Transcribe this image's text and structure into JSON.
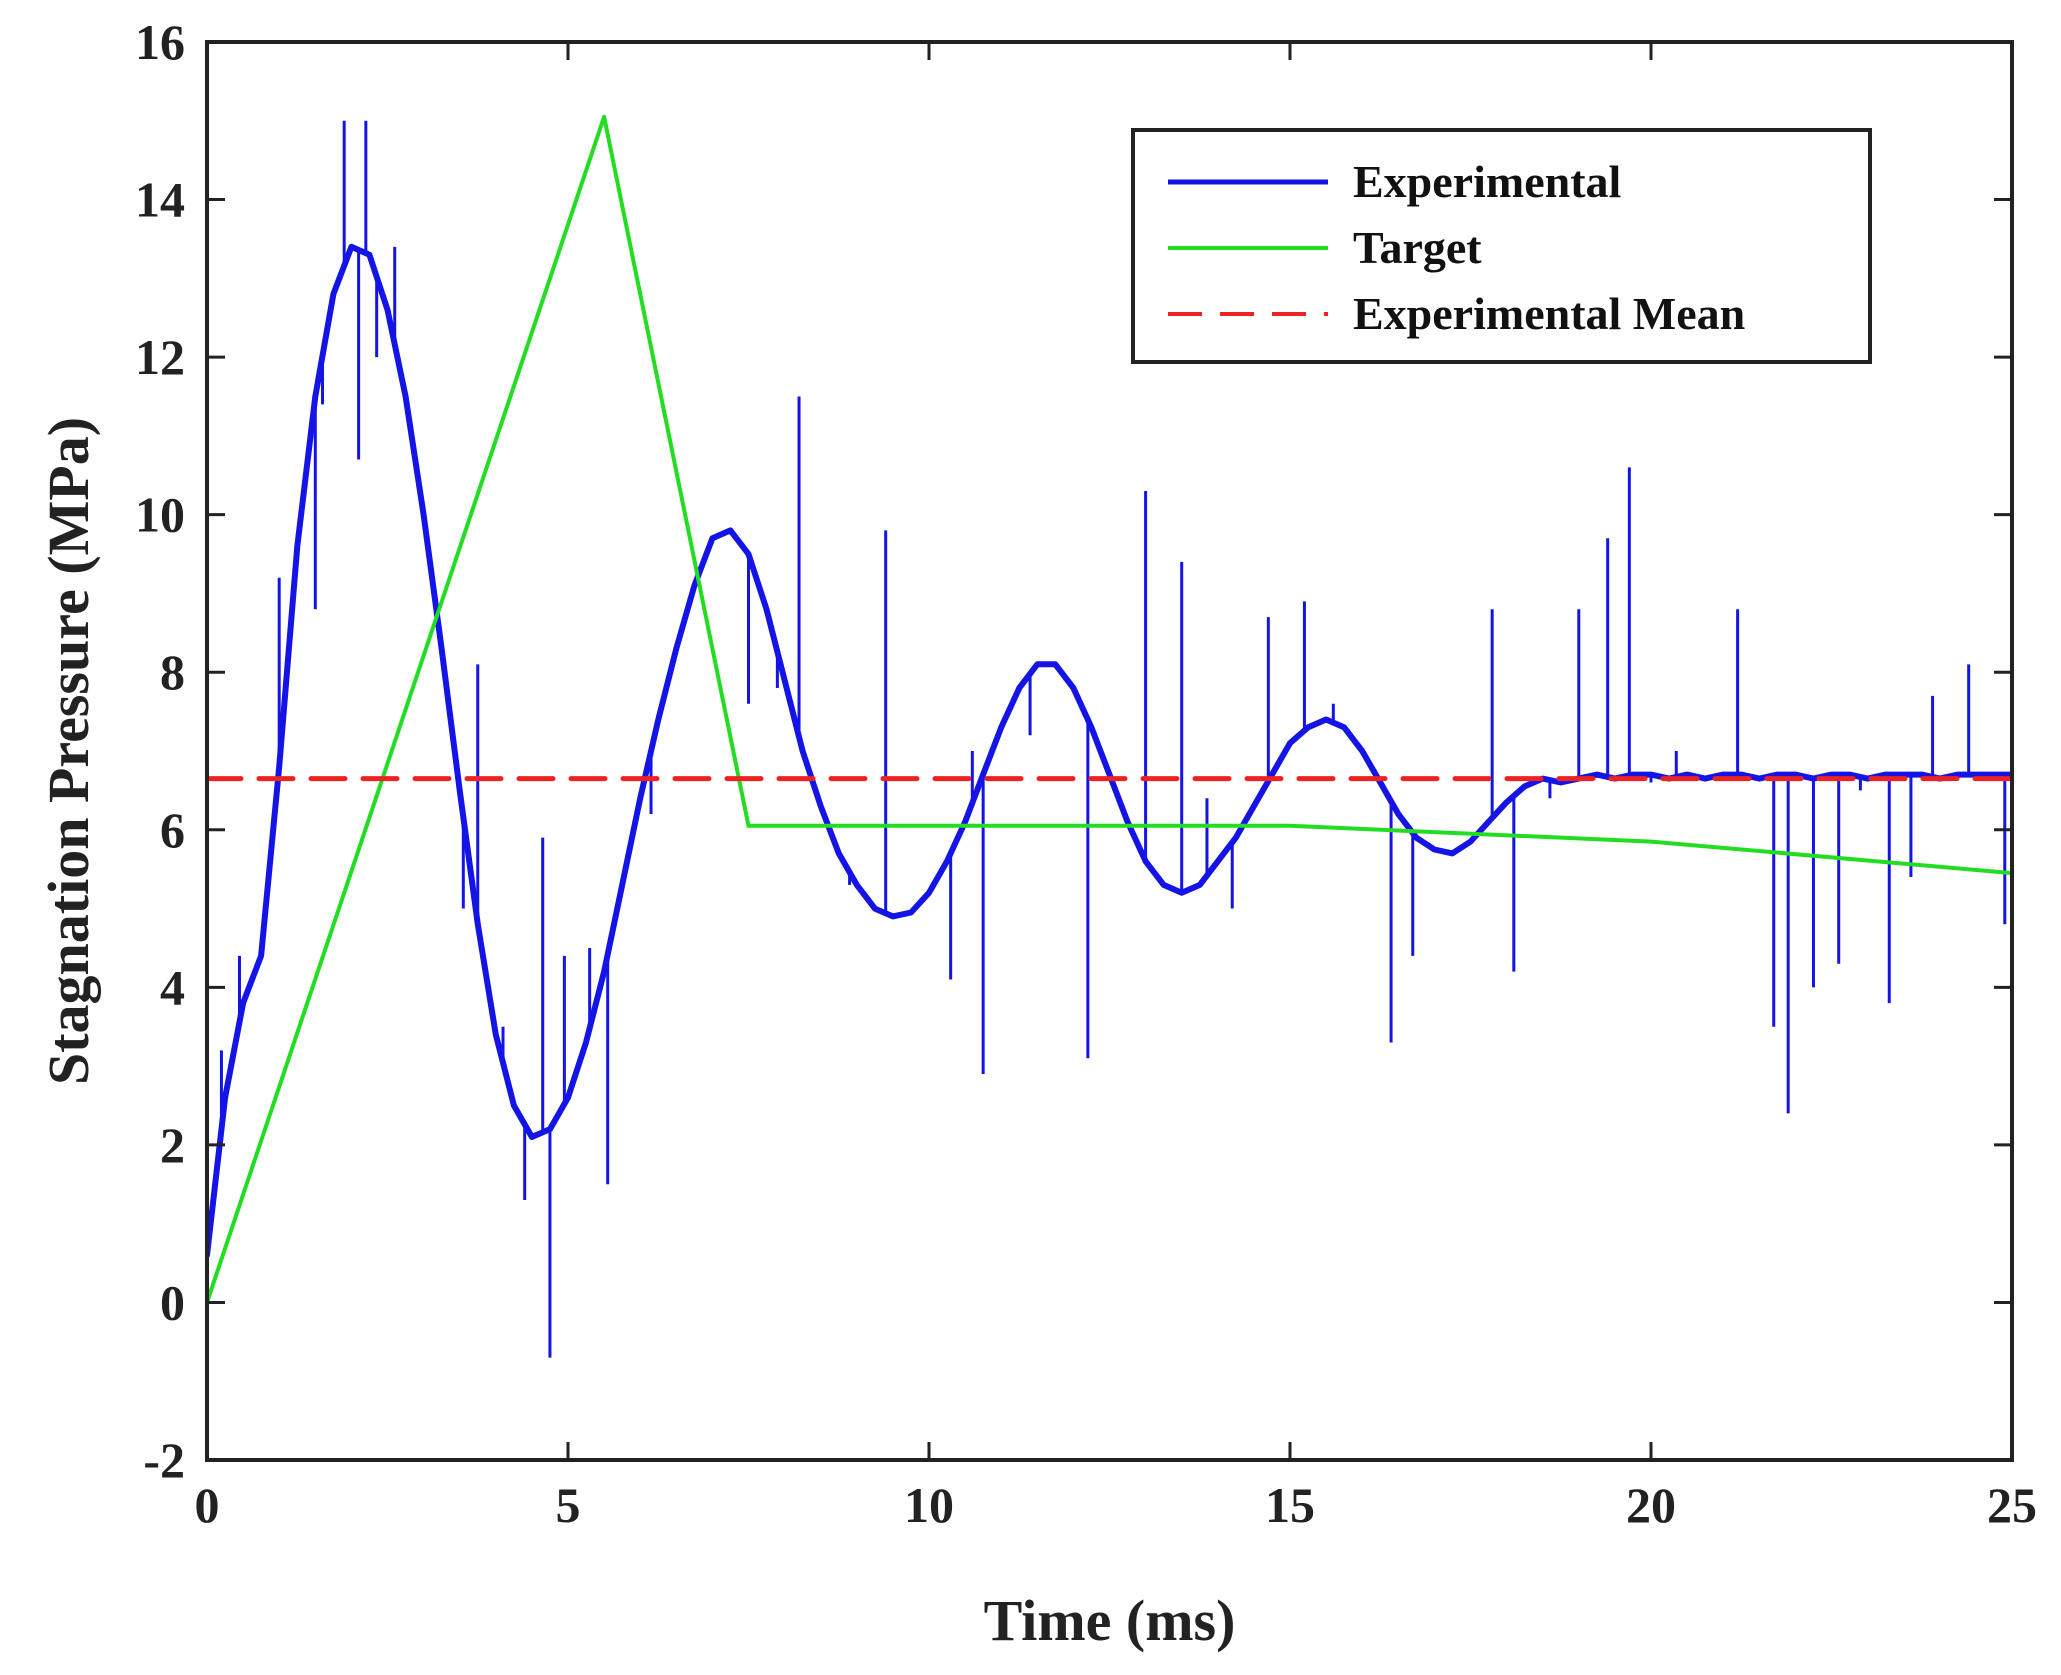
{
  "chart_data": {
    "type": "line",
    "title": "",
    "xlabel": "Time (ms)",
    "ylabel": "Stagnation Pressure (MPa)",
    "xlim": [
      0,
      25
    ],
    "ylim": [
      -2,
      16
    ],
    "xticks": [
      0,
      5,
      10,
      15,
      20,
      25
    ],
    "xtick_labels": [
      "0",
      "5",
      "10",
      "15",
      "20",
      "25"
    ],
    "yticks": [
      -2,
      0,
      2,
      4,
      6,
      8,
      10,
      12,
      14,
      16
    ],
    "ytick_labels": [
      "-2",
      "0",
      "2",
      "4",
      "6",
      "8",
      "10",
      "12",
      "14",
      "16"
    ],
    "grid": false,
    "legend_position": "top-right",
    "series": [
      {
        "name": "Experimental",
        "color": "#1414e6",
        "style": "solid",
        "x": [
          0,
          0.25,
          0.5,
          0.75,
          1.0,
          1.25,
          1.5,
          1.75,
          2.0,
          2.25,
          2.5,
          2.75,
          3.0,
          3.25,
          3.5,
          3.75,
          4.0,
          4.25,
          4.5,
          4.75,
          5.0,
          5.25,
          5.5,
          5.75,
          6.0,
          6.25,
          6.5,
          6.75,
          7.0,
          7.25,
          7.5,
          7.75,
          8.0,
          8.25,
          8.5,
          8.75,
          9.0,
          9.25,
          9.5,
          9.75,
          10.0,
          10.25,
          10.5,
          10.75,
          11.0,
          11.25,
          11.5,
          11.75,
          12.0,
          12.25,
          12.5,
          12.75,
          13.0,
          13.25,
          13.5,
          13.75,
          14.0,
          14.25,
          14.5,
          14.75,
          15.0,
          15.25,
          15.5,
          15.75,
          16.0,
          16.25,
          16.5,
          16.75,
          17.0,
          17.25,
          17.5,
          17.75,
          18.0,
          18.25,
          18.5,
          18.75,
          19.0,
          19.25,
          19.5,
          19.75,
          20.0,
          20.25,
          20.5,
          20.75,
          21.0,
          21.25,
          21.5,
          21.75,
          22.0,
          22.25,
          22.5,
          22.75,
          23.0,
          23.25,
          23.5,
          23.75,
          24.0,
          24.25,
          24.5,
          24.75,
          25.0
        ],
        "y": [
          0.6,
          2.6,
          3.8,
          4.4,
          6.8,
          9.6,
          11.5,
          12.8,
          13.4,
          13.3,
          12.6,
          11.5,
          10.0,
          8.3,
          6.5,
          4.8,
          3.4,
          2.5,
          2.1,
          2.2,
          2.6,
          3.3,
          4.2,
          5.3,
          6.4,
          7.4,
          8.3,
          9.1,
          9.7,
          9.8,
          9.5,
          8.8,
          7.9,
          7.0,
          6.3,
          5.7,
          5.3,
          5.0,
          4.9,
          4.95,
          5.2,
          5.6,
          6.1,
          6.7,
          7.3,
          7.8,
          8.1,
          8.1,
          7.8,
          7.3,
          6.7,
          6.1,
          5.6,
          5.3,
          5.2,
          5.3,
          5.6,
          5.9,
          6.3,
          6.7,
          7.1,
          7.3,
          7.4,
          7.3,
          7.0,
          6.6,
          6.2,
          5.9,
          5.75,
          5.7,
          5.85,
          6.1,
          6.35,
          6.55,
          6.65,
          6.6,
          6.65,
          6.7,
          6.65,
          6.7,
          6.7,
          6.65,
          6.7,
          6.65,
          6.7,
          6.7,
          6.65,
          6.7,
          6.7,
          6.65,
          6.7,
          6.7,
          6.65,
          6.7,
          6.7,
          6.7,
          6.65,
          6.7,
          6.7,
          6.7,
          6.7
        ]
      },
      {
        "name": "Target",
        "color": "#22dd22",
        "style": "solid",
        "x": [
          0,
          5.5,
          7.5,
          15.0,
          20.0,
          25.0
        ],
        "y": [
          0,
          15.05,
          6.05,
          6.05,
          5.85,
          5.45
        ]
      },
      {
        "name": "Experimental Mean",
        "color": "#ee2222",
        "style": "dashed",
        "x": [
          0,
          25
        ],
        "y": [
          6.65,
          6.65
        ]
      }
    ],
    "spikes": [
      {
        "x": 0.2,
        "y": 3.2
      },
      {
        "x": 0.45,
        "y": 4.4
      },
      {
        "x": 1.0,
        "y": 9.2
      },
      {
        "x": 1.3,
        "y": 10.1
      },
      {
        "x": 1.5,
        "y": 8.8
      },
      {
        "x": 1.6,
        "y": 11.4
      },
      {
        "x": 1.9,
        "y": 15.0
      },
      {
        "x": 2.1,
        "y": 10.7
      },
      {
        "x": 2.2,
        "y": 15.0
      },
      {
        "x": 2.35,
        "y": 12.0
      },
      {
        "x": 2.6,
        "y": 13.4
      },
      {
        "x": 3.55,
        "y": 5.0
      },
      {
        "x": 3.75,
        "y": 8.1
      },
      {
        "x": 4.1,
        "y": 3.5
      },
      {
        "x": 4.4,
        "y": 1.3
      },
      {
        "x": 4.65,
        "y": 5.9
      },
      {
        "x": 4.75,
        "y": -0.7
      },
      {
        "x": 4.95,
        "y": 4.4
      },
      {
        "x": 5.3,
        "y": 4.5
      },
      {
        "x": 5.55,
        "y": 1.5
      },
      {
        "x": 6.15,
        "y": 6.2
      },
      {
        "x": 7.5,
        "y": 7.6
      },
      {
        "x": 7.9,
        "y": 7.8
      },
      {
        "x": 8.2,
        "y": 11.5
      },
      {
        "x": 8.9,
        "y": 5.3
      },
      {
        "x": 9.4,
        "y": 9.8
      },
      {
        "x": 10.3,
        "y": 4.1
      },
      {
        "x": 10.6,
        "y": 7.0
      },
      {
        "x": 10.75,
        "y": 2.9
      },
      {
        "x": 11.4,
        "y": 7.2
      },
      {
        "x": 12.2,
        "y": 3.1
      },
      {
        "x": 13.0,
        "y": 10.3
      },
      {
        "x": 13.5,
        "y": 9.4
      },
      {
        "x": 13.85,
        "y": 6.4
      },
      {
        "x": 14.2,
        "y": 5.0
      },
      {
        "x": 14.7,
        "y": 8.7
      },
      {
        "x": 15.2,
        "y": 8.9
      },
      {
        "x": 15.6,
        "y": 7.6
      },
      {
        "x": 16.4,
        "y": 3.3
      },
      {
        "x": 16.7,
        "y": 4.4
      },
      {
        "x": 17.8,
        "y": 8.8
      },
      {
        "x": 18.1,
        "y": 4.2
      },
      {
        "x": 18.6,
        "y": 6.4
      },
      {
        "x": 19.0,
        "y": 8.8
      },
      {
        "x": 19.4,
        "y": 9.7
      },
      {
        "x": 19.7,
        "y": 10.6
      },
      {
        "x": 20.0,
        "y": 6.6
      },
      {
        "x": 20.35,
        "y": 7.0
      },
      {
        "x": 21.2,
        "y": 8.8
      },
      {
        "x": 21.7,
        "y": 3.5
      },
      {
        "x": 21.9,
        "y": 2.4
      },
      {
        "x": 22.25,
        "y": 4.0
      },
      {
        "x": 22.6,
        "y": 4.3
      },
      {
        "x": 22.9,
        "y": 6.5
      },
      {
        "x": 23.3,
        "y": 3.8
      },
      {
        "x": 23.6,
        "y": 5.4
      },
      {
        "x": 23.9,
        "y": 7.7
      },
      {
        "x": 24.4,
        "y": 8.1
      },
      {
        "x": 24.9,
        "y": 4.8
      }
    ]
  }
}
